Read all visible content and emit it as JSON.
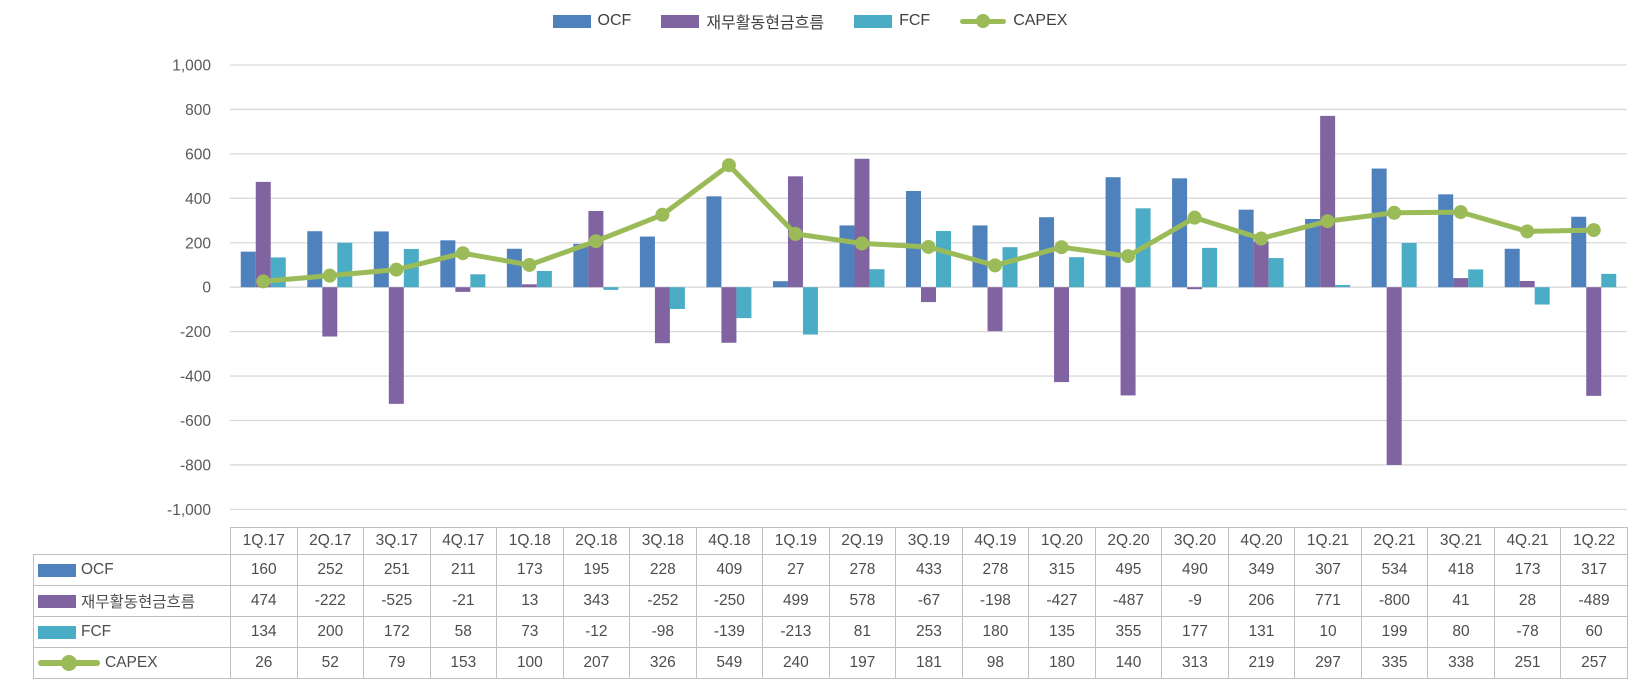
{
  "colors": {
    "ocf": "#4F81BD",
    "financing": "#8064A2",
    "fcf": "#4BACC6",
    "capex": "#9BBB59",
    "gridline": "#D9D9D9",
    "axis_text": "#595959",
    "table_text": "#4d4d4d",
    "table_border": "#BFBFBF",
    "legend_text": "#404040"
  },
  "chart_data": {
    "type": "combo",
    "categories": [
      "1Q.17",
      "2Q.17",
      "3Q.17",
      "4Q.17",
      "1Q.18",
      "2Q.18",
      "3Q.18",
      "4Q.18",
      "1Q.19",
      "2Q.19",
      "3Q.19",
      "4Q.19",
      "1Q.20",
      "2Q.20",
      "3Q.20",
      "4Q.20",
      "1Q.21",
      "2Q.21",
      "3Q.21",
      "4Q.21",
      "1Q.22"
    ],
    "series": [
      {
        "id": "ocf",
        "name": "OCF",
        "type": "bar",
        "color_key": "ocf",
        "values": [
          160,
          252,
          251,
          211,
          173,
          195,
          228,
          409,
          27,
          278,
          433,
          278,
          315,
          495,
          490,
          349,
          307,
          534,
          418,
          173,
          317
        ]
      },
      {
        "id": "financing",
        "name": "재무활동현금흐름",
        "type": "bar",
        "color_key": "financing",
        "values": [
          474,
          -222,
          -525,
          -21,
          13,
          343,
          -252,
          -250,
          499,
          578,
          -67,
          -198,
          -427,
          -487,
          -9,
          206,
          771,
          -800,
          41,
          28,
          -489
        ]
      },
      {
        "id": "fcf",
        "name": "FCF",
        "type": "bar",
        "color_key": "fcf",
        "values": [
          134,
          200,
          172,
          58,
          73,
          -12,
          -98,
          -139,
          -213,
          81,
          253,
          180,
          135,
          355,
          177,
          131,
          10,
          199,
          80,
          -78,
          60
        ]
      },
      {
        "id": "capex",
        "name": "CAPEX",
        "type": "line",
        "color_key": "capex",
        "values": [
          26,
          52,
          79,
          153,
          100,
          207,
          326,
          549,
          240,
          197,
          181,
          98,
          180,
          140,
          313,
          219,
          297,
          335,
          338,
          251,
          257
        ]
      }
    ],
    "title": "",
    "xlabel": "",
    "ylabel": "",
    "ylim": [
      -1000,
      1000
    ],
    "ytick_step": 200,
    "ytick_labels": [
      "1,000",
      "800",
      "600",
      "400",
      "200",
      "0",
      "-200",
      "-400",
      "-600",
      "-800",
      "-1,000"
    ],
    "grid": true,
    "legend_position": "top",
    "data_table_shown": true
  }
}
